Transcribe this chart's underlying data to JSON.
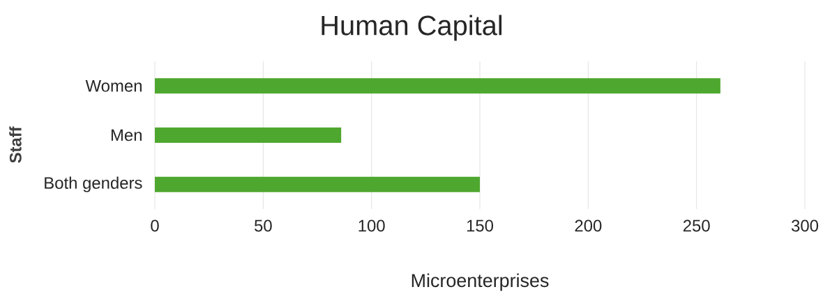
{
  "chart_data": {
    "type": "bar",
    "orientation": "horizontal",
    "title": "Human Capital",
    "xlabel": "Microenterprises",
    "ylabel": "Staff",
    "categories": [
      "Women",
      "Men",
      "Both genders"
    ],
    "values": [
      261,
      86,
      150
    ],
    "color": "#4ea72e",
    "xlim": [
      0,
      300
    ],
    "xticks": [
      0,
      50,
      100,
      150,
      200,
      250,
      300
    ],
    "grid": "x"
  }
}
